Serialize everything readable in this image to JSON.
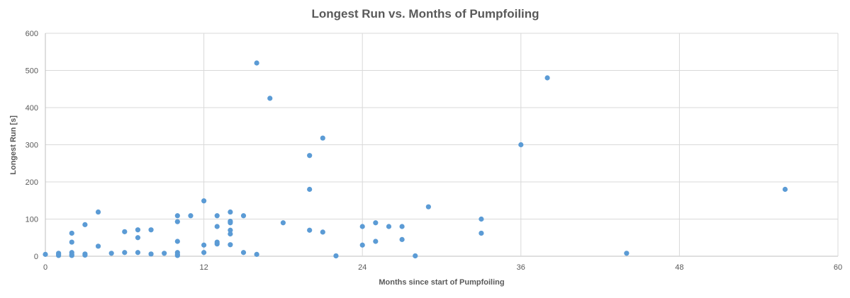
{
  "chart_data": {
    "type": "scatter",
    "title": "Longest Run vs. Months of Pumpfoiling",
    "xlabel": "Months since start of Pumpfoiling",
    "ylabel": "Longest Run [s]",
    "xlim": [
      0,
      60
    ],
    "ylim": [
      0,
      600
    ],
    "xticks": [
      0,
      12,
      24,
      36,
      48,
      60
    ],
    "yticks": [
      0,
      100,
      200,
      300,
      400,
      500,
      600
    ],
    "grid": true,
    "legend": "none",
    "marker_color": "#5b9bd5",
    "points": [
      {
        "x": 0,
        "y": 5
      },
      {
        "x": 1,
        "y": 2
      },
      {
        "x": 1,
        "y": 5
      },
      {
        "x": 1,
        "y": 8
      },
      {
        "x": 2,
        "y": 2
      },
      {
        "x": 2,
        "y": 5
      },
      {
        "x": 2,
        "y": 10
      },
      {
        "x": 2,
        "y": 38
      },
      {
        "x": 2,
        "y": 62
      },
      {
        "x": 3,
        "y": 3
      },
      {
        "x": 3,
        "y": 6
      },
      {
        "x": 3,
        "y": 85
      },
      {
        "x": 4,
        "y": 27
      },
      {
        "x": 4,
        "y": 119
      },
      {
        "x": 5,
        "y": 8
      },
      {
        "x": 6,
        "y": 10
      },
      {
        "x": 6,
        "y": 66
      },
      {
        "x": 7,
        "y": 10
      },
      {
        "x": 7,
        "y": 50
      },
      {
        "x": 7,
        "y": 71
      },
      {
        "x": 8,
        "y": 6
      },
      {
        "x": 8,
        "y": 71
      },
      {
        "x": 9,
        "y": 8
      },
      {
        "x": 10,
        "y": 2
      },
      {
        "x": 10,
        "y": 5
      },
      {
        "x": 10,
        "y": 10
      },
      {
        "x": 10,
        "y": 40
      },
      {
        "x": 10,
        "y": 93
      },
      {
        "x": 10,
        "y": 109
      },
      {
        "x": 11,
        "y": 109
      },
      {
        "x": 12,
        "y": 10
      },
      {
        "x": 12,
        "y": 30
      },
      {
        "x": 12,
        "y": 149
      },
      {
        "x": 13,
        "y": 33
      },
      {
        "x": 13,
        "y": 38
      },
      {
        "x": 13,
        "y": 80
      },
      {
        "x": 13,
        "y": 109
      },
      {
        "x": 14,
        "y": 31
      },
      {
        "x": 14,
        "y": 60
      },
      {
        "x": 14,
        "y": 70
      },
      {
        "x": 14,
        "y": 90
      },
      {
        "x": 14,
        "y": 94
      },
      {
        "x": 14,
        "y": 119
      },
      {
        "x": 15,
        "y": 10
      },
      {
        "x": 15,
        "y": 109
      },
      {
        "x": 16,
        "y": 5
      },
      {
        "x": 16,
        "y": 520
      },
      {
        "x": 17,
        "y": 425
      },
      {
        "x": 18,
        "y": 90
      },
      {
        "x": 20,
        "y": 70
      },
      {
        "x": 20,
        "y": 180
      },
      {
        "x": 20,
        "y": 271
      },
      {
        "x": 21,
        "y": 65
      },
      {
        "x": 21,
        "y": 318
      },
      {
        "x": 22,
        "y": 1
      },
      {
        "x": 24,
        "y": 30
      },
      {
        "x": 24,
        "y": 80
      },
      {
        "x": 25,
        "y": 40
      },
      {
        "x": 25,
        "y": 90
      },
      {
        "x": 26,
        "y": 80
      },
      {
        "x": 27,
        "y": 45
      },
      {
        "x": 27,
        "y": 80
      },
      {
        "x": 28,
        "y": 1
      },
      {
        "x": 29,
        "y": 133
      },
      {
        "x": 33,
        "y": 62
      },
      {
        "x": 33,
        "y": 100
      },
      {
        "x": 36,
        "y": 300
      },
      {
        "x": 38,
        "y": 480
      },
      {
        "x": 44,
        "y": 8
      },
      {
        "x": 56,
        "y": 180
      }
    ]
  }
}
